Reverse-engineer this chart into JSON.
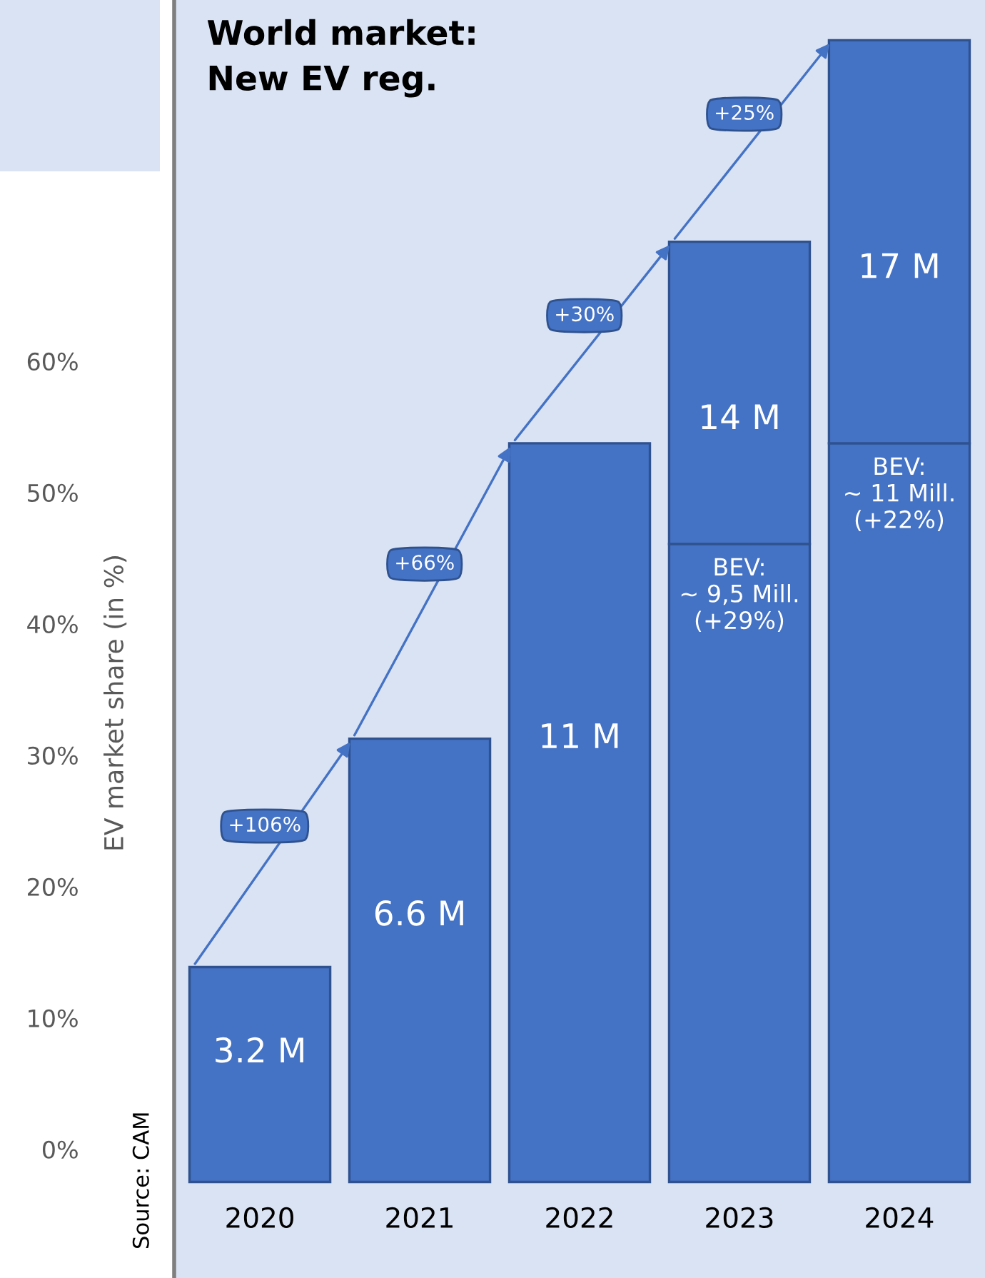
{
  "chart_data": {
    "type": "bar",
    "stacked": true,
    "title": "World market:\nNew EV reg.",
    "ylabel": "EV market share (in %)",
    "categories": [
      "2020",
      "2021",
      "2022",
      "2023",
      "2024"
    ],
    "series": [
      {
        "color": "#4472c4",
        "axis": "y2",
        "values": [
          3.2,
          6.6,
          11,
          9.5,
          11
        ],
        "value_labels": [
          "3.2 M",
          "6.6 M",
          "11 M",
          "BEV:\n~ 9,5 Mill.\n(+29%)",
          "BEV:\n~ 11 Mill.\n(+22%)"
        ]
      },
      {
        "color": "#4472c4",
        "axis": "y2",
        "values": [
          null,
          null,
          null,
          4.5,
          6
        ]
      }
    ],
    "totals": [
      null,
      null,
      null,
      "14 M",
      "17 M"
    ],
    "ylim": [
      -9.8,
      87.5
    ],
    "yticks": [
      {
        "value": 0,
        "label": "0%"
      },
      {
        "value": 10,
        "label": "10%"
      },
      {
        "value": 20,
        "label": "20%"
      },
      {
        "value": 30,
        "label": "30%"
      },
      {
        "value": 40,
        "label": "40%"
      },
      {
        "value": 50,
        "label": "50%"
      },
      {
        "value": 60,
        "label": "60%"
      }
    ],
    "y2lim": [
      -1.43,
      17.6
    ],
    "tick_labels": "y",
    "annotations": [
      "+106%",
      "+66%",
      "+30%",
      "+25%",
      "Source: CAM"
    ],
    "grid": false,
    "legend": false
  }
}
